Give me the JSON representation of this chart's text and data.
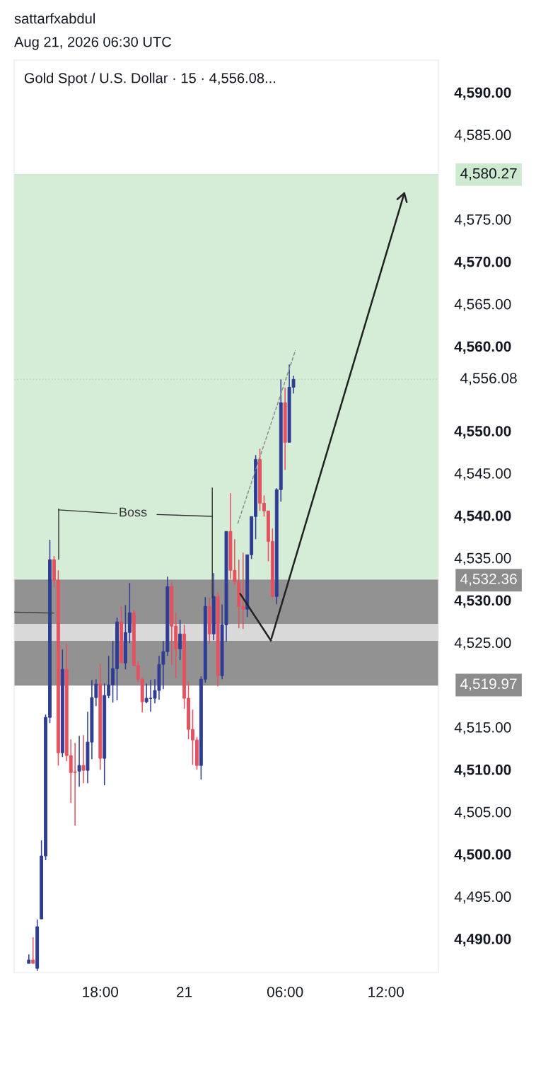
{
  "chart_data": {
    "type": "candlestick",
    "title": "Gold Spot / U.S. Dollar · 15 · 4,556.08...",
    "annotations": [
      "sattarfxabdul",
      "Aug 21, 2026 06:30 UTC",
      "Boss"
    ],
    "categories": [
      null,
      null,
      null,
      null,
      null,
      null,
      null,
      null,
      null,
      null,
      null,
      null,
      null,
      null,
      null,
      null,
      null,
      "18:00",
      null,
      null,
      null,
      null,
      null,
      null,
      null,
      null,
      null,
      null,
      null,
      null,
      null,
      null,
      null,
      null,
      null,
      null,
      null,
      "21",
      null,
      null,
      null,
      null,
      null,
      null,
      null,
      null,
      null,
      null,
      null,
      null,
      null,
      null,
      null,
      null,
      null,
      null,
      null,
      null,
      null,
      null,
      null,
      "06:00",
      null,
      null,
      null,
      null,
      null,
      null,
      null,
      null,
      null,
      null,
      null,
      null,
      null,
      null,
      null,
      null,
      null,
      null,
      null,
      null,
      null,
      null,
      null,
      "12:00",
      null,
      null,
      null,
      null,
      null,
      null,
      null,
      null,
      null,
      null,
      null,
      null
    ],
    "ohlc": [
      [
        4487.08,
        4488.16,
        4487.08,
        4487.5
      ],
      [
        4487.5,
        4490.17,
        4487.08,
        4487.08
      ],
      [
        4486.5,
        4492.26,
        4486.2,
        4491.42
      ],
      [
        4492.34,
        4501.61,
        4492.34,
        4499.78
      ],
      [
        4499.78,
        4516.48,
        4499.28,
        4516.15
      ],
      [
        4516.15,
        4537.12,
        4515.48,
        4534.78
      ],
      [
        4534.78,
        4535.2,
        4531.52,
        4532.36
      ],
      [
        4532.36,
        4533.53,
        4510.47,
        4511.97
      ],
      [
        4511.97,
        4524.17,
        4511.47,
        4521.83
      ],
      [
        4521.83,
        4524.84,
        4510.97,
        4511.64
      ],
      [
        4511.64,
        4513.56,
        4506.04,
        4509.63
      ],
      [
        4509.72,
        4513.14,
        4503.37,
        4509.63
      ],
      [
        4509.8,
        4513.98,
        4507.96,
        4510.47
      ],
      [
        4510.47,
        4514.06,
        4508.38,
        4509.89
      ],
      [
        4509.89,
        4516.82,
        4508.38,
        4513.23
      ],
      [
        4513.23,
        4520.58,
        4511.22,
        4518.49
      ],
      [
        4518.49,
        4520.66,
        4517.49,
        4520.08
      ],
      [
        4520.08,
        4522.5,
        4509.97,
        4511.31
      ],
      [
        4511.31,
        4520.16,
        4508.13,
        4518.74
      ],
      [
        4518.74,
        4523.42,
        4518.41,
        4519.99
      ],
      [
        4519.99,
        4525.17,
        4517.9,
        4521.91
      ],
      [
        4521.91,
        4527.93,
        4518.16,
        4527.43
      ],
      [
        4527.43,
        4529.27,
        4522.58,
        4522.58
      ],
      [
        4522.58,
        4529.43,
        4521.83,
        4526.18
      ],
      [
        4526.18,
        4532.02,
        4524.92,
        4528.51
      ],
      [
        4528.51,
        4528.85,
        4522.25,
        4522.25
      ],
      [
        4522.25,
        4522.75,
        4520.33,
        4520.66
      ],
      [
        4520.66,
        4520.91,
        4516.74,
        4517.99
      ],
      [
        4517.99,
        4520.16,
        4517.82,
        4518.41
      ],
      [
        4518.41,
        4520.58,
        4516.82,
        4518.41
      ],
      [
        4518.41,
        4520.66,
        4517.82,
        4519.33
      ],
      [
        4519.33,
        4523.42,
        4518.24,
        4522.42
      ],
      [
        4522.42,
        4525.17,
        4519.49,
        4523.92
      ],
      [
        4523.92,
        4532.77,
        4523.42,
        4531.61
      ],
      [
        4531.61,
        4532.11,
        4522.33,
        4526.93
      ],
      [
        4526.93,
        4528.43,
        4520.83,
        4524.25
      ],
      [
        4524.25,
        4527.68,
        4522.92,
        4526.01
      ],
      [
        4526.01,
        4527.09,
        4517.15,
        4518.41
      ],
      [
        4518.41,
        4520.41,
        4513.56,
        4514.73
      ],
      [
        4514.73,
        4517.07,
        4510.55,
        4513.48
      ],
      [
        4513.48,
        4513.81,
        4509.97,
        4510.47
      ],
      [
        4510.47,
        4521.0,
        4508.8,
        4520.66
      ],
      [
        4520.66,
        4530.35,
        4520.24,
        4529.27
      ],
      [
        4529.27,
        4530.27,
        4524.84,
        4526.01
      ],
      [
        4526.01,
        4533.19,
        4525.26,
        4530.44
      ],
      [
        4530.44,
        4530.94,
        4519.83,
        4521.08
      ],
      [
        4521.08,
        4529.5,
        4520.66,
        4527.09
      ],
      [
        4527.09,
        4538.12,
        4525.09,
        4538.12
      ],
      [
        4538.12,
        4542.63,
        4532.5,
        4533.53
      ],
      [
        4533.53,
        4537.2,
        4531.77,
        4532.19
      ],
      [
        4532.19,
        4534.78,
        4526.68,
        4529.27
      ],
      [
        4529.27,
        4535.62,
        4526.59,
        4528.93
      ],
      [
        4528.93,
        4535.36,
        4528.01,
        4535.36
      ],
      [
        4535.36,
        4539.88,
        4534.86,
        4539.88
      ],
      [
        4539.88,
        4547.14,
        4537.2,
        4546.64
      ],
      [
        4546.64,
        4547.9,
        4540.54,
        4541.46
      ],
      [
        4541.46,
        4542.38,
        4539.88,
        4540.54
      ],
      [
        4540.54,
        4540.54,
        4534.61,
        4536.95
      ],
      [
        4536.95,
        4538.46,
        4530.44,
        4530.44
      ],
      [
        4530.44,
        4543.22,
        4529.52,
        4543.05
      ],
      [
        4543.05,
        4556.08,
        4541.63,
        4553.33
      ],
      [
        4553.33,
        4555.08,
        4545.39,
        4548.65
      ],
      [
        4548.65,
        4557.84,
        4548.65,
        4555.16
      ],
      [
        4555.16,
        4556.5,
        4554.41,
        4556.08
      ],
      null,
      null,
      null,
      null,
      null,
      null,
      null,
      null,
      null,
      null,
      null,
      null,
      null,
      null,
      null,
      null,
      null,
      null,
      null,
      null,
      null,
      null,
      null,
      null,
      null,
      null,
      null,
      null,
      null,
      null,
      null,
      null,
      null,
      null
    ],
    "colors": [
      "#2e3d94",
      "#e5525f",
      "#2e3d94",
      "#2e3d94",
      "#2e3d94",
      "#2e3d94",
      "#e5525f",
      "#e5525f",
      "#2e3d94",
      "#e5525f",
      "#e5525f",
      "#e5525f",
      "#2e3d94",
      "#e5525f",
      "#2e3d94",
      "#2e3d94",
      "#2e3d94",
      "#e5525f",
      "#2e3d94",
      "#2e3d94",
      "#2e3d94",
      "#2e3d94",
      "#e5525f",
      "#2e3d94",
      "#2e3d94",
      "#e5525f",
      "#e5525f",
      "#e5525f",
      "#2e3d94",
      "#2e3d94",
      "#2e3d94",
      "#2e3d94",
      "#2e3d94",
      "#2e3d94",
      "#e5525f",
      "#e5525f",
      "#2e3d94",
      "#e5525f",
      "#e5525f",
      "#e5525f",
      "#e5525f",
      "#2e3d94",
      "#2e3d94",
      "#e5525f",
      "#2e3d94",
      "#e5525f",
      "#2e3d94",
      "#2e3d94",
      "#e5525f",
      "#e5525f",
      "#e5525f",
      "#e5525f",
      "#2e3d94",
      "#2e3d94",
      "#2e3d94",
      "#e5525f",
      "#e5525f",
      "#e5525f",
      "#e5525f",
      "#2e3d94",
      "#2e3d94",
      "#e5525f",
      "#2e3d94",
      "#2e3d94",
      null,
      null,
      null,
      null,
      null,
      null,
      null,
      null,
      null,
      null,
      null,
      null,
      null,
      null,
      null,
      null,
      null,
      null,
      null,
      null,
      null,
      null,
      null,
      null,
      null,
      null,
      null,
      null,
      null,
      null,
      null,
      null,
      null,
      null
    ],
    "ylim": [
      4486.0,
      4593.8
    ],
    "yticks": [
      {
        "value": 4490,
        "label": "4,490.00"
      },
      {
        "value": 4495,
        "label": "4,495.00"
      },
      {
        "value": 4500,
        "label": "4,500.00"
      },
      {
        "value": 4505,
        "label": "4,505.00"
      },
      {
        "value": 4510,
        "label": "4,510.00"
      },
      {
        "value": 4515,
        "label": "4,515.00"
      },
      {
        "value": 4525,
        "label": "4,525.00"
      },
      {
        "value": 4530,
        "label": "4,530.00"
      },
      {
        "value": 4535,
        "label": "4,535.00"
      },
      {
        "value": 4540,
        "label": "4,540.00"
      },
      {
        "value": 4545,
        "label": "4,545.00"
      },
      {
        "value": 4550,
        "label": "4,550.00"
      },
      {
        "value": 4560,
        "label": "4,560.00"
      },
      {
        "value": 4565,
        "label": "4,565.00"
      },
      {
        "value": 4570,
        "label": "4,570.00"
      },
      {
        "value": 4575,
        "label": "4,575.00"
      },
      {
        "value": 4585,
        "label": "4,585.00"
      },
      {
        "value": 4590,
        "label": "4,590.00"
      }
    ],
    "bands": [
      {
        "axis": "y",
        "from": 4532.36,
        "to": 4580.27,
        "color": "#d5ecd7"
      },
      {
        "axis": "y",
        "from": 4519.97,
        "to": 4532.36,
        "color": "#929292"
      },
      {
        "axis": "y",
        "from": 4525.2,
        "to": 4527.2,
        "color": "#d9d9d9"
      }
    ],
    "ref_lines": [
      {
        "axis": "y",
        "value": 4580.27,
        "label": "4,580.27",
        "color": "#cdeacf"
      },
      {
        "axis": "y",
        "value": 4532.36,
        "label": "4,532.36",
        "color": "#8c8c8c"
      },
      {
        "axis": "y",
        "value": 4519.97,
        "label": "4,519.97",
        "color": "#8c8c8c"
      },
      {
        "axis": "y",
        "value": 4556.08,
        "label": "4,556.08",
        "color": "#b9d9bb",
        "line_style": "dotted"
      }
    ]
  }
}
